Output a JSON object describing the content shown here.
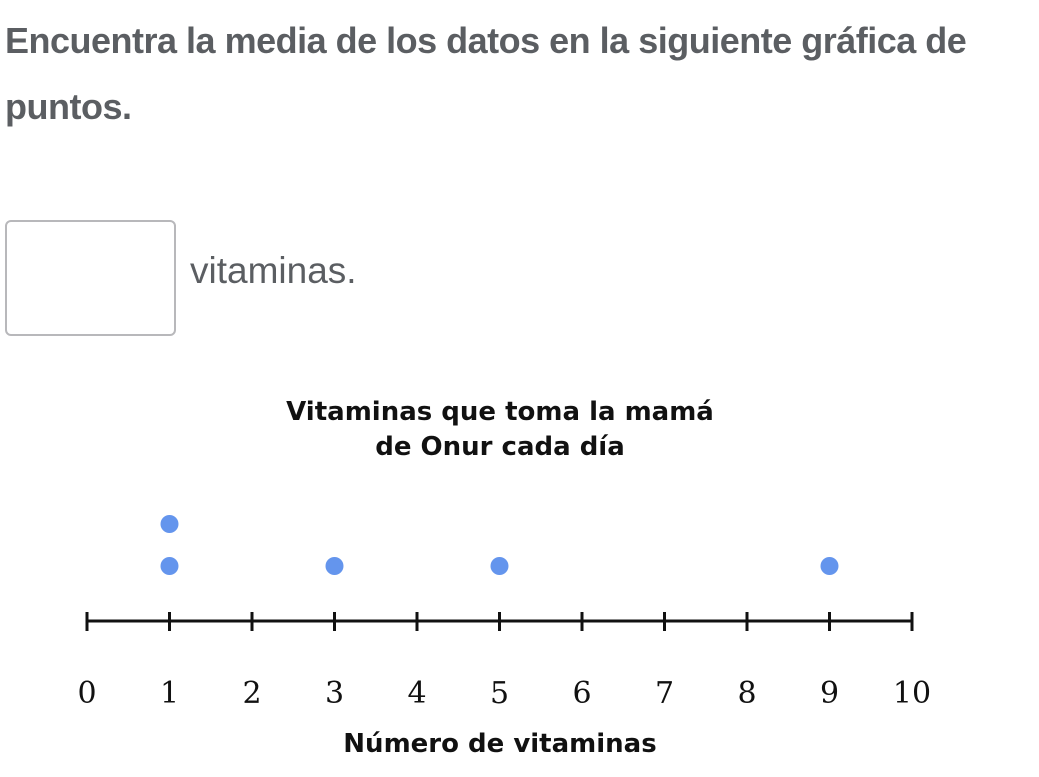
{
  "question": {
    "text": "Encuentra la media de los datos en la siguiente gráfica de puntos.",
    "answer_value": "",
    "unit_label": "vitaminas."
  },
  "colors": {
    "dot": "#6495ed",
    "text": "#5b5e62"
  },
  "chart_data": {
    "type": "scatter",
    "subtype": "dot-plot",
    "title_lines": [
      "Vitaminas que toma la mamá",
      "de Onur cada día"
    ],
    "xlabel": "Número de vitaminas",
    "xlim": [
      0,
      10
    ],
    "ticks": [
      "0",
      "1",
      "2",
      "3",
      "4",
      "5",
      "6",
      "7",
      "8",
      "9",
      "10"
    ],
    "points": [
      {
        "x": 1,
        "count": 2
      },
      {
        "x": 3,
        "count": 1
      },
      {
        "x": 5,
        "count": 1
      },
      {
        "x": 9,
        "count": 1
      }
    ]
  }
}
